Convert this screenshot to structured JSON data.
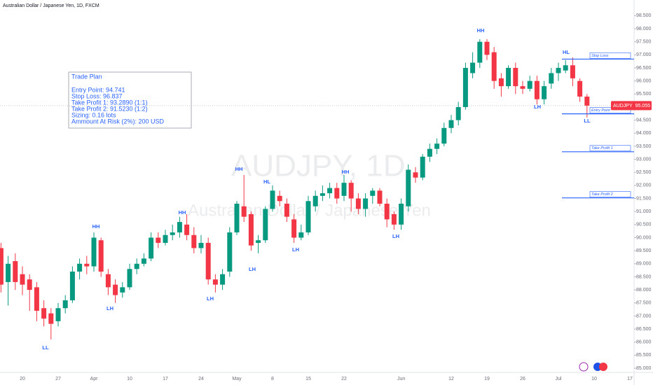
{
  "header": {
    "title": "Australian Dollar / Japanese Yen, 1D, FXCM"
  },
  "watermark": {
    "symbol": "AUDJPY, 1D",
    "description": "Australian Dollar / Japanese Yen"
  },
  "trade_plan": {
    "title": "Trade Plan",
    "lines": [
      "Entry Point: 94.741",
      "Stop Loss: 96.837",
      "Take Profit 1: 93.2890 (1:1)",
      "Take Profit 2: 91.5230 (1:2)",
      "Sizing: 0.16 lots",
      "Ammount At Risk (2%): 200 USD"
    ]
  },
  "chart_data": {
    "type": "candlestick",
    "categories": [
      null,
      null,
      null,
      "20",
      null,
      null,
      null,
      null,
      "27",
      null,
      null,
      null,
      null,
      "Apr",
      null,
      null,
      null,
      null,
      "10",
      null,
      null,
      null,
      null,
      "17",
      null,
      null,
      null,
      null,
      "24",
      null,
      null,
      null,
      null,
      "May",
      null,
      null,
      null,
      null,
      "8",
      null,
      null,
      null,
      null,
      "15",
      null,
      null,
      null,
      null,
      "22",
      null,
      null,
      null,
      null,
      null,
      null,
      null,
      "Jun",
      null,
      null,
      null,
      null,
      null,
      null,
      "12",
      null,
      null,
      null,
      null,
      "19",
      null,
      null,
      null,
      null,
      "26",
      null,
      null,
      null,
      null,
      "Jul",
      null,
      null,
      null,
      null,
      "10",
      null,
      null,
      null,
      null,
      "17"
    ],
    "open": [
      89.6,
      88.3,
      89.1,
      88.6,
      88.4,
      88.1,
      87.3,
      87.1,
      86.8,
      87.3,
      87.6,
      88.7,
      89.0,
      88.9,
      89.9,
      88.6,
      88.2,
      87.9,
      88.1,
      88.8,
      89.0,
      89.2,
      90.0,
      89.8,
      90.1,
      90.2,
      90.5,
      90.1,
      89.6,
      89.8,
      88.4,
      88.2,
      88.7,
      90.2,
      91.2,
      90.9,
      89.8,
      89.9,
      91.1,
      91.6,
      91.3,
      90.7,
      90.0,
      90.2,
      91.2,
      91.6,
      91.7,
      91.9,
      91.6,
      92.1,
      91.5,
      91.1,
      91.6,
      91.8,
      91.3,
      90.9,
      90.5,
      91.2,
      92.5,
      92.3,
      93.1,
      93.4,
      93.6,
      94.2,
      94.5,
      95.0,
      96.3,
      96.7,
      97.5,
      97.1,
      96.1,
      95.8,
      96.5,
      95.8,
      95.7,
      96.0,
      95.3,
      95.9,
      96.3,
      96.4,
      96.6,
      96.0,
      95.4,
      null,
      null,
      null,
      null,
      null,
      null
    ],
    "high": [
      89.8,
      89.3,
      89.4,
      88.9,
      88.6,
      88.3,
      87.6,
      87.3,
      87.5,
      87.8,
      88.9,
      89.2,
      89.3,
      90.2,
      90.0,
      88.8,
      88.4,
      88.3,
      89.0,
      89.2,
      89.4,
      90.2,
      90.2,
      90.3,
      90.5,
      90.8,
      90.9,
      90.4,
      90.1,
      90.0,
      88.6,
      88.8,
      90.4,
      91.4,
      92.4,
      91.0,
      90.1,
      91.2,
      92.0,
      91.8,
      91.5,
      90.9,
      90.5,
      91.6,
      91.8,
      92.0,
      92.1,
      92.1,
      92.4,
      92.2,
      91.7,
      91.7,
      91.9,
      91.9,
      91.5,
      91.0,
      91.5,
      92.8,
      92.7,
      93.2,
      93.6,
      93.8,
      94.4,
      94.7,
      95.2,
      96.7,
      97.1,
      97.6,
      97.6,
      97.3,
      96.3,
      96.6,
      96.7,
      96.0,
      96.2,
      96.2,
      96.0,
      96.5,
      96.7,
      96.8,
      96.9,
      96.1,
      95.5,
      null,
      null,
      null,
      null,
      null,
      null
    ],
    "low": [
      87.9,
      87.4,
      88.0,
      87.8,
      87.2,
      86.8,
      86.6,
      86.1,
      86.6,
      87.1,
      87.5,
      88.4,
      88.6,
      88.7,
      88.5,
      87.8,
      87.5,
      87.7,
      88.0,
      88.6,
      88.9,
      89.1,
      89.6,
      89.7,
      89.9,
      90.0,
      89.9,
      89.4,
      89.4,
      88.2,
      87.9,
      88.0,
      88.5,
      90.1,
      90.6,
      89.5,
      89.4,
      89.8,
      91.0,
      91.2,
      90.6,
      89.8,
      89.9,
      90.1,
      91.0,
      91.4,
      91.5,
      91.3,
      91.4,
      91.0,
      90.9,
      90.8,
      91.3,
      91.2,
      90.4,
      90.3,
      90.3,
      91.0,
      92.1,
      92.2,
      92.9,
      93.2,
      93.5,
      94.0,
      94.3,
      94.9,
      96.1,
      96.5,
      96.8,
      95.7,
      95.4,
      95.7,
      95.5,
      95.5,
      95.6,
      95.1,
      95.1,
      95.7,
      96.0,
      96.3,
      95.8,
      95.2,
      94.6,
      null,
      null,
      null,
      null,
      null,
      null
    ],
    "close": [
      88.2,
      89.0,
      88.3,
      88.2,
      88.0,
      87.2,
      86.9,
      86.7,
      87.3,
      87.6,
      88.7,
      89.0,
      88.9,
      90.0,
      88.7,
      88.1,
      87.8,
      88.1,
      88.8,
      89.0,
      89.2,
      90.0,
      89.8,
      90.1,
      90.2,
      90.6,
      90.1,
      89.6,
      89.8,
      88.4,
      88.2,
      88.6,
      90.2,
      91.3,
      90.8,
      89.7,
      89.9,
      91.1,
      91.8,
      91.4,
      90.8,
      90.0,
      90.2,
      91.4,
      91.6,
      91.7,
      91.9,
      91.5,
      92.1,
      91.5,
      91.1,
      91.5,
      91.8,
      91.3,
      90.7,
      90.5,
      91.3,
      92.6,
      92.3,
      93.1,
      93.4,
      93.6,
      94.2,
      94.5,
      95.0,
      96.5,
      96.7,
      97.5,
      97.0,
      96.0,
      95.8,
      96.5,
      95.8,
      95.7,
      96.0,
      95.3,
      95.8,
      96.3,
      96.5,
      96.6,
      96.1,
      95.4,
      95.055,
      null,
      null,
      null,
      null,
      null,
      null
    ],
    "up_color": "#089981",
    "down_color": "#f23645",
    "ylim": [
      84.84,
      99.1
    ],
    "yticks": [
      {
        "value": 85,
        "label": "85.000"
      },
      {
        "value": 85.5,
        "label": "85.500"
      },
      {
        "value": 86,
        "label": "86.000"
      },
      {
        "value": 86.5,
        "label": "86.500"
      },
      {
        "value": 87,
        "label": "87.000"
      },
      {
        "value": 87.5,
        "label": "87.500"
      },
      {
        "value": 88,
        "label": "88.000"
      },
      {
        "value": 88.5,
        "label": "88.500"
      },
      {
        "value": 89,
        "label": "89.000"
      },
      {
        "value": 89.5,
        "label": "89.500"
      },
      {
        "value": 90,
        "label": "90.000"
      },
      {
        "value": 90.5,
        "label": "90.500"
      },
      {
        "value": 91,
        "label": "91.000"
      },
      {
        "value": 91.5,
        "label": "91.500"
      },
      {
        "value": 92,
        "label": "92.000"
      },
      {
        "value": 92.5,
        "label": "92.500"
      },
      {
        "value": 93,
        "label": "93.000"
      },
      {
        "value": 93.5,
        "label": "93.500"
      },
      {
        "value": 94,
        "label": "94.000"
      },
      {
        "value": 94.5,
        "label": "94.500"
      },
      {
        "value": 95.5,
        "label": "95.500"
      },
      {
        "value": 96,
        "label": "96.000"
      },
      {
        "value": 96.5,
        "label": "96.500"
      },
      {
        "value": 97,
        "label": "97.000"
      },
      {
        "value": 97.5,
        "label": "97.500"
      },
      {
        "value": 98,
        "label": "98.000"
      },
      {
        "value": 98.5,
        "label": "98.500"
      }
    ],
    "levels": [
      {
        "name": "Stop Loss",
        "value": 96.837
      },
      {
        "name": "Entry Point",
        "value": 94.741
      },
      {
        "name": "Take Profit 1",
        "value": 93.289
      },
      {
        "name": "Take Profit 2",
        "value": 91.523
      }
    ],
    "level_color": "#2962ff",
    "symbol_tag": "AUDJPY",
    "last_price": 95.055,
    "annotations": [
      "LL",
      "HH",
      "LH",
      "HH",
      "LH",
      "HH",
      "LH",
      "HL",
      "LH",
      "HH",
      "LH",
      "HH",
      "LH",
      "HL",
      "LL"
    ]
  }
}
